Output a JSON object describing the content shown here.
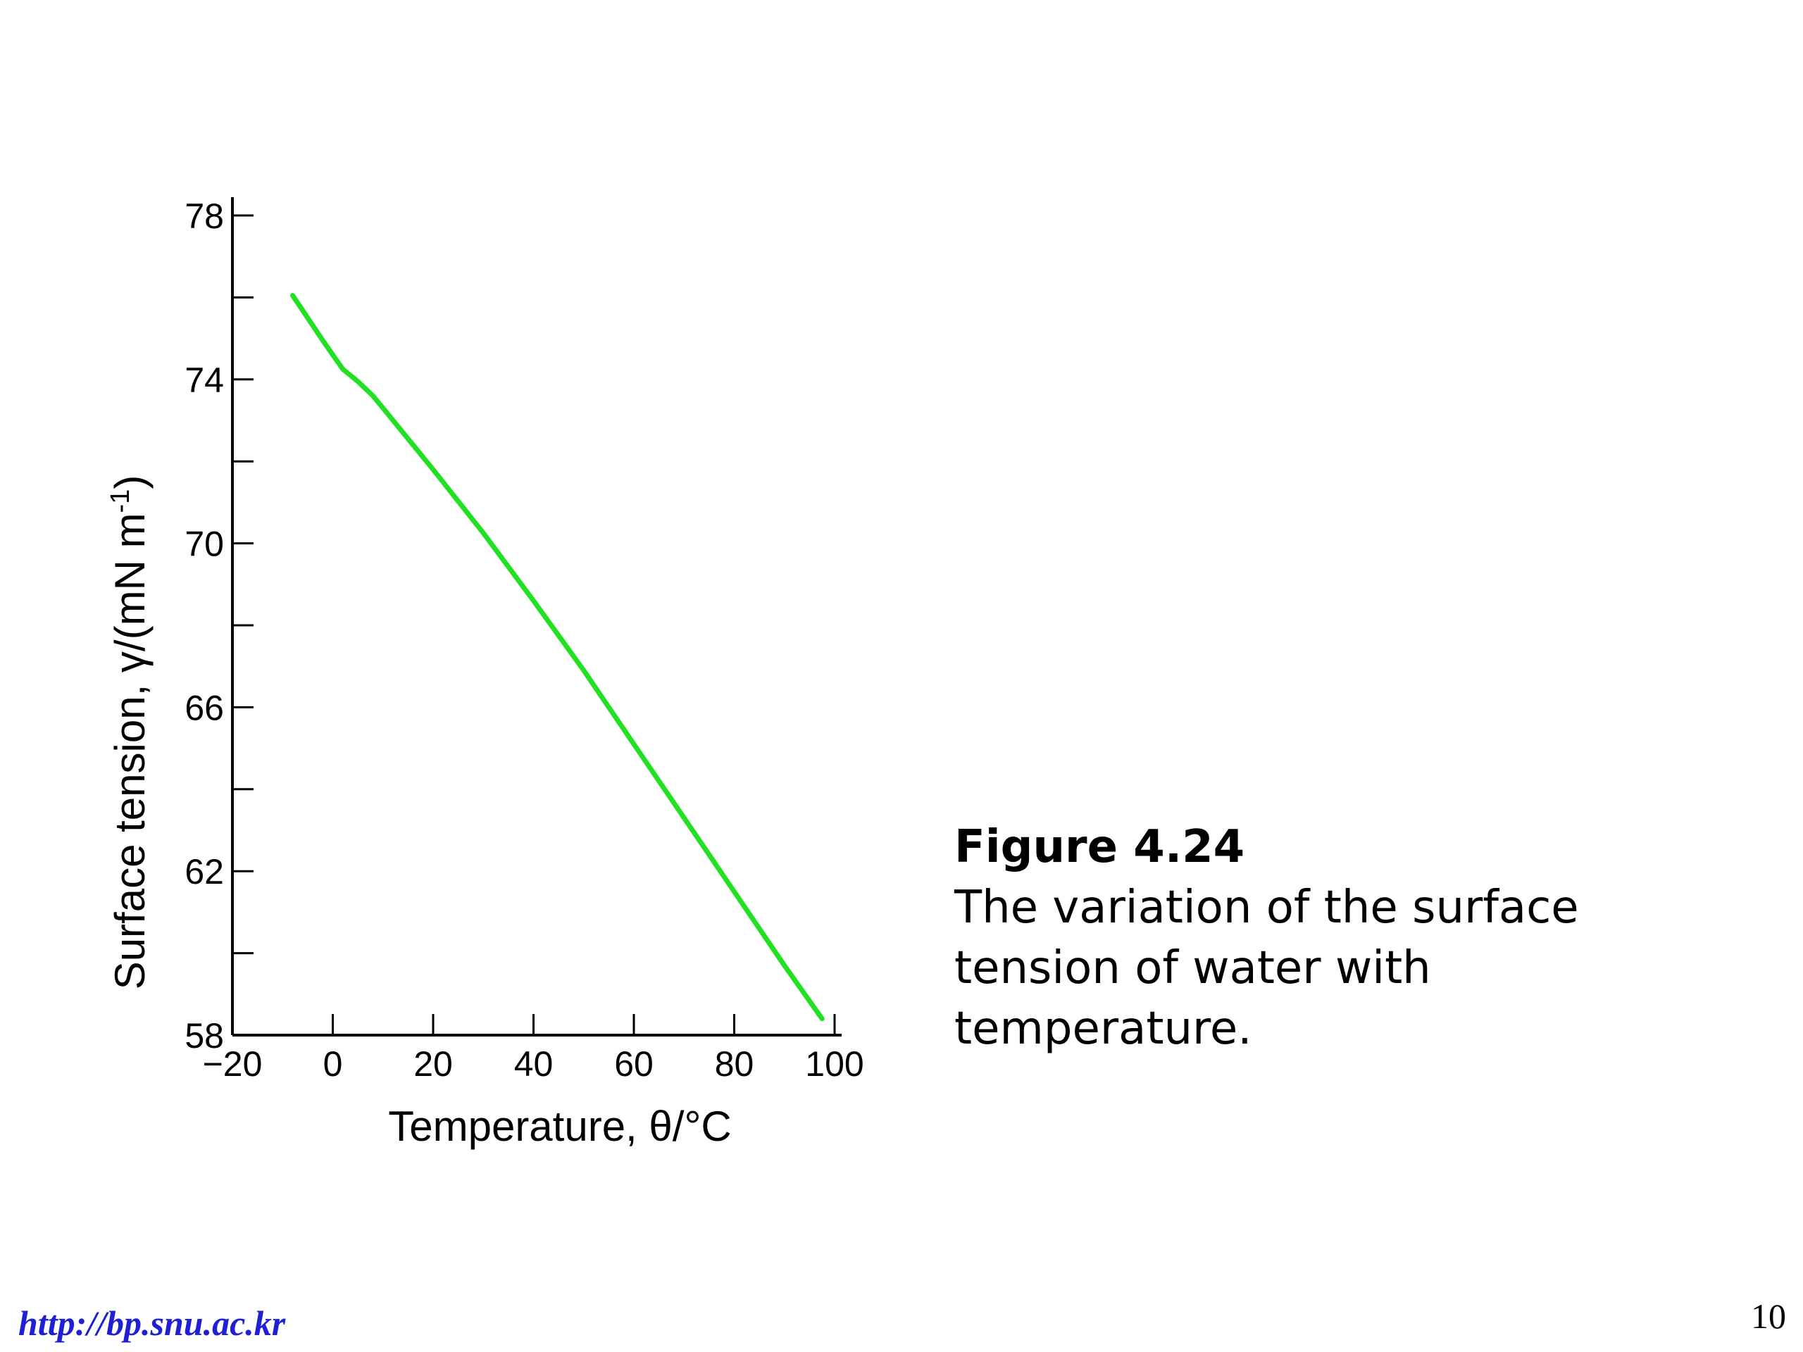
{
  "chart_data": {
    "type": "line",
    "xlabel": "Temperature, θ/°C",
    "ylabel": "Surface tension, γ/(mN m",
    "ylabel_superscript": "-1",
    "ylabel_close": ")",
    "xlim": [
      -20,
      100
    ],
    "ylim": [
      58,
      78
    ],
    "x_ticks": [
      {
        "value": -20,
        "label": "−20"
      },
      {
        "value": 0,
        "label": "0"
      },
      {
        "value": 20,
        "label": "20"
      },
      {
        "value": 40,
        "label": "40"
      },
      {
        "value": 60,
        "label": "60"
      },
      {
        "value": 80,
        "label": "80"
      },
      {
        "value": 100,
        "label": "100"
      }
    ],
    "y_ticks_major": [
      {
        "value": 58,
        "label": "58"
      },
      {
        "value": 62,
        "label": "62"
      },
      {
        "value": 66,
        "label": "66"
      },
      {
        "value": 70,
        "label": "70"
      },
      {
        "value": 74,
        "label": "74"
      },
      {
        "value": 78,
        "label": "78"
      }
    ],
    "y_ticks_minor": [
      60,
      64,
      68,
      72,
      76
    ],
    "grid": false,
    "series": [
      {
        "color": "#22e022",
        "x": [
          -8,
          -5,
          -2,
          0,
          2,
          5,
          8,
          10,
          20,
          30,
          40,
          50,
          60,
          70,
          80,
          90,
          97.5
        ],
        "y": [
          76.05,
          75.5,
          74.95,
          74.6,
          74.25,
          73.95,
          73.6,
          73.3,
          71.8,
          70.25,
          68.6,
          66.9,
          65.1,
          63.3,
          61.5,
          59.7,
          58.4
        ]
      }
    ]
  },
  "caption": {
    "heading": "Figure 4.24",
    "lines": [
      "The variation of the surface",
      "tension of water with",
      "temperature."
    ]
  },
  "footer": {
    "url": "http://bp.snu.ac.kr",
    "page_number": "10"
  }
}
